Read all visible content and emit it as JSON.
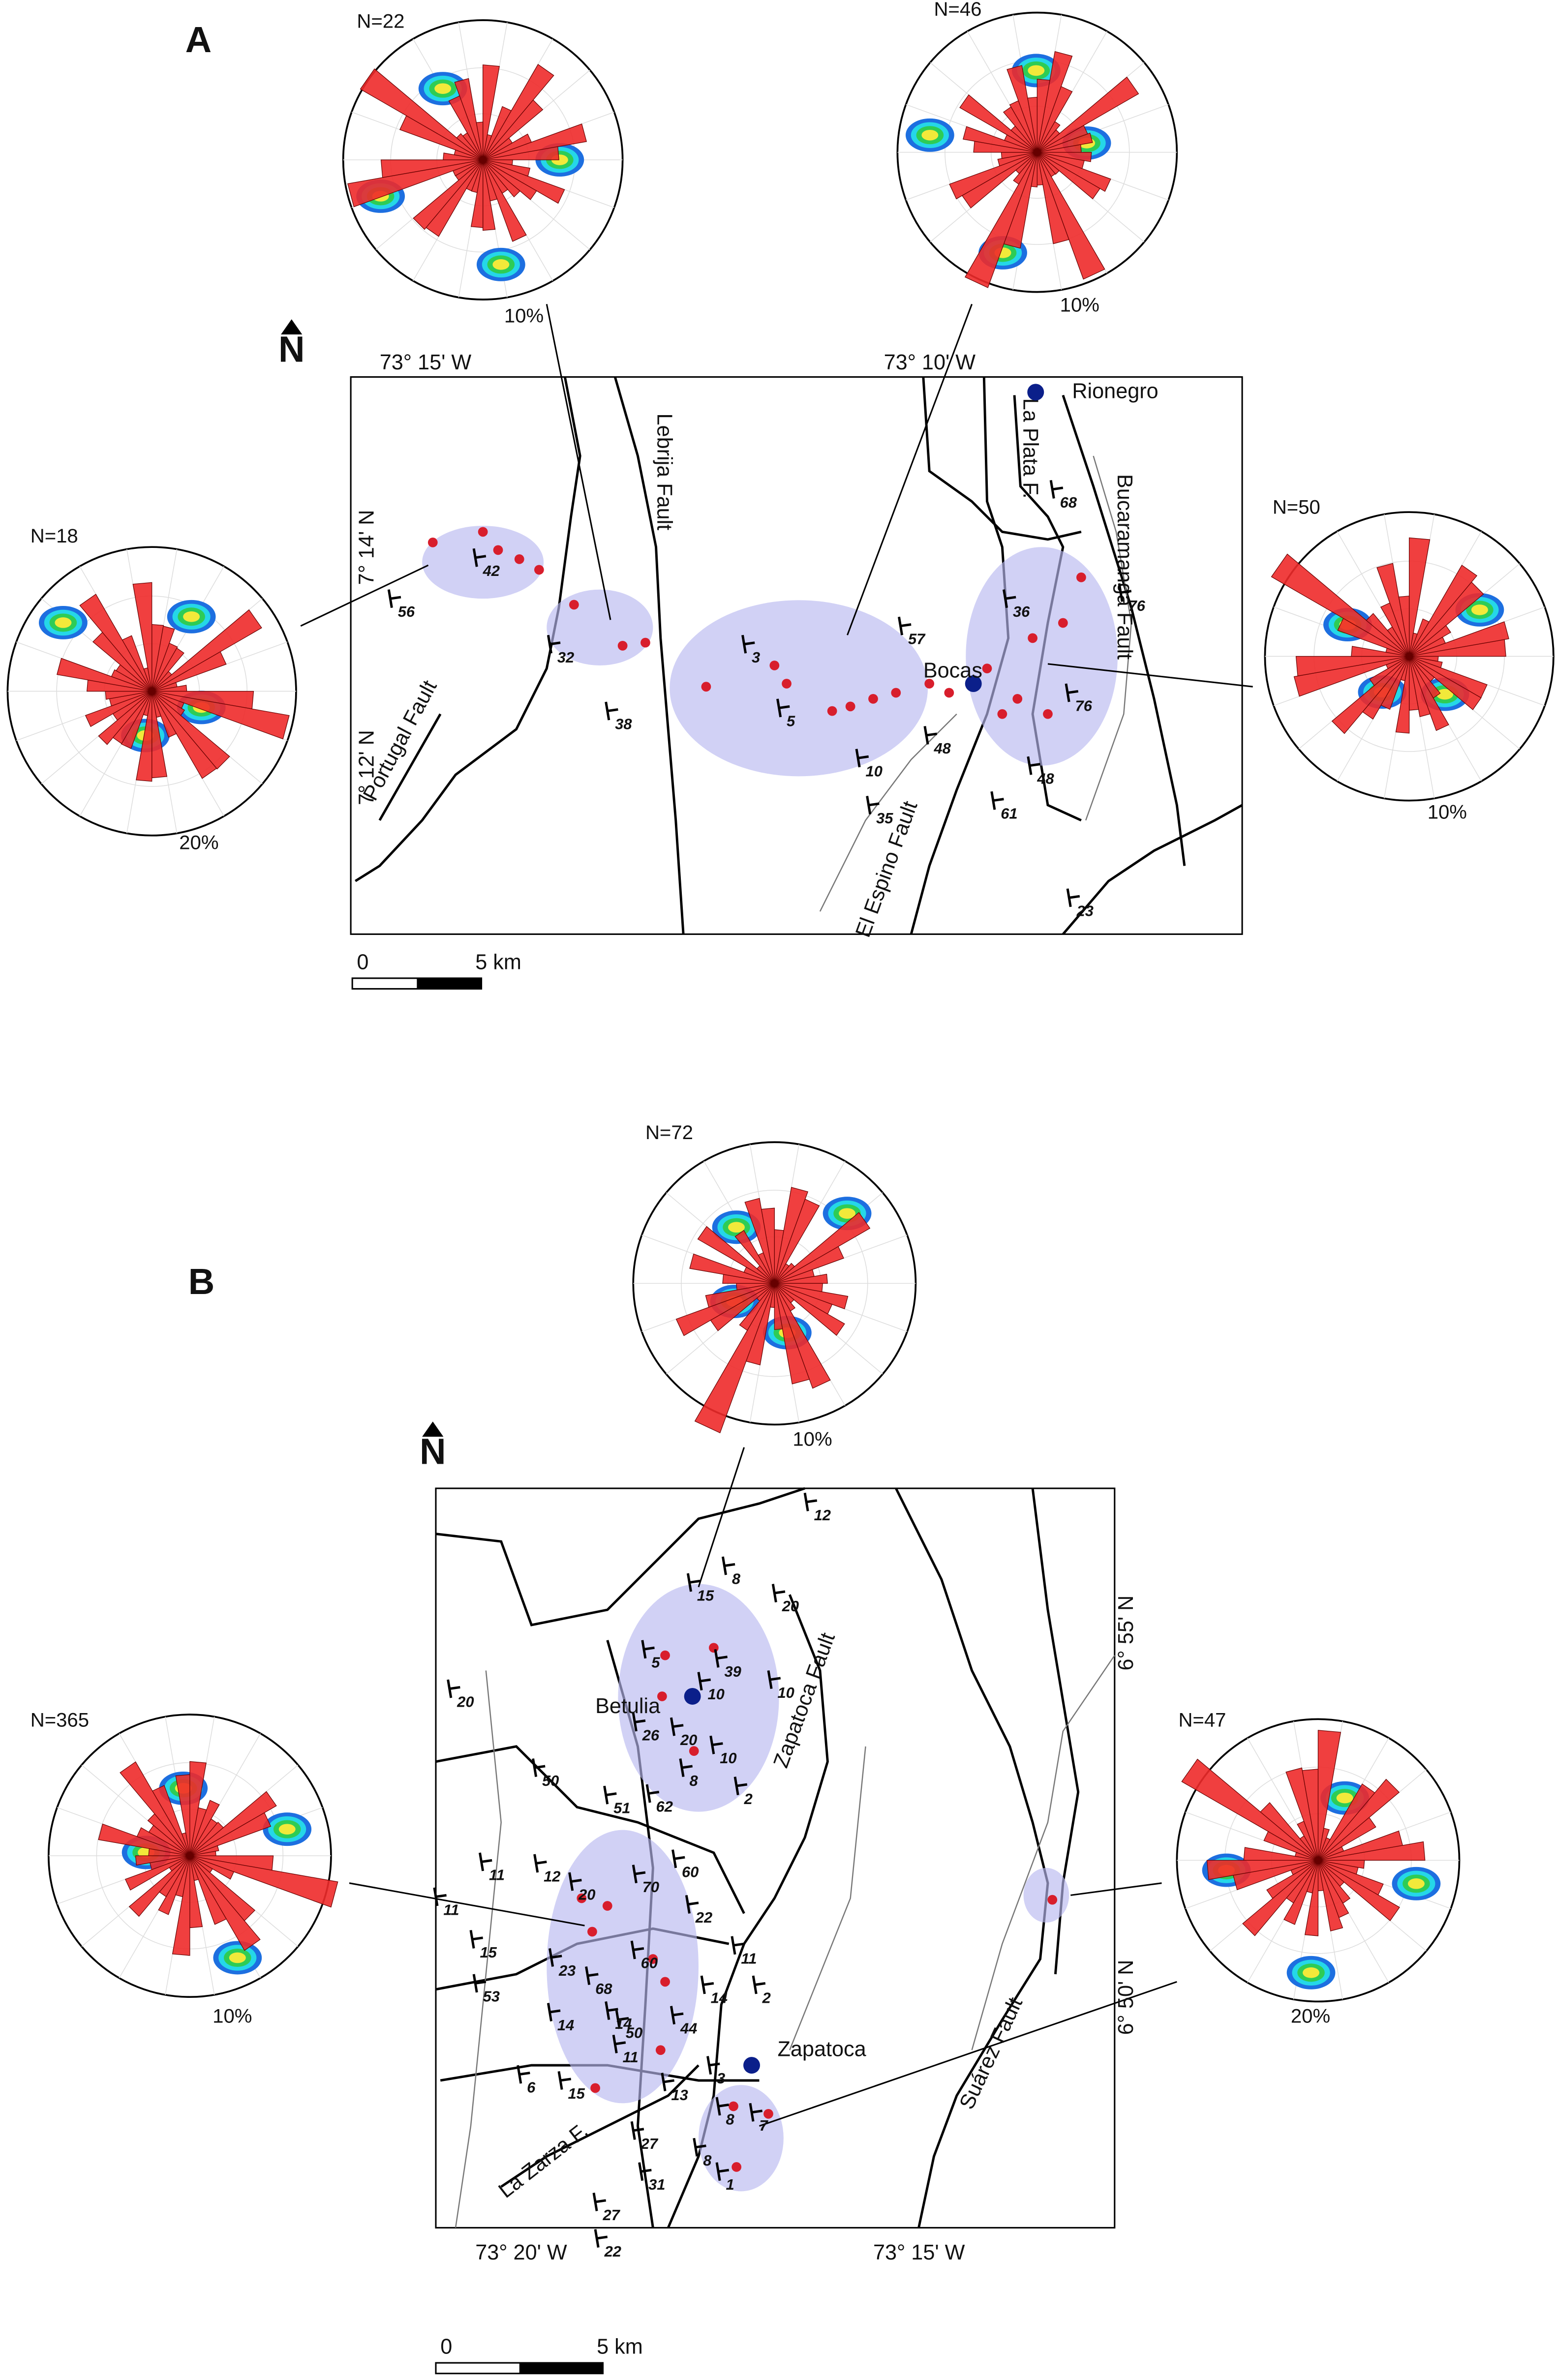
{
  "panels": [
    {
      "label": "A",
      "north": "N",
      "stereonets": [
        {
          "n": "N=22",
          "scale": "10%"
        },
        {
          "n": "N=46",
          "scale": "10%"
        },
        {
          "n": "N=18",
          "scale": "20%"
        },
        {
          "n": "N=50",
          "scale": "10%"
        }
      ],
      "coords": [
        "73° 15' W",
        "73° 10' W",
        "7° 14' N",
        "7° 12' N"
      ],
      "faults": [
        "Lebrija Fault",
        "Portugal Fault",
        "La Plata F.",
        "Bucaramanga Fault",
        "El Espino Fault"
      ],
      "towns": [
        "Rionegro",
        "Bocas"
      ],
      "dips": [
        "42",
        "56",
        "32",
        "38",
        "3",
        "5",
        "57",
        "36",
        "76",
        "68",
        "10",
        "48",
        "35",
        "76",
        "48",
        "61",
        "23"
      ],
      "scale": {
        "start": "0",
        "end": "5 km"
      }
    },
    {
      "label": "B",
      "north": "N",
      "stereonets": [
        {
          "n": "N=72",
          "scale": "10%"
        },
        {
          "n": "N=365",
          "scale": "10%"
        },
        {
          "n": "N=47",
          "scale": "20%"
        }
      ],
      "coords": [
        "73° 20' W",
        "73° 15' W",
        "6° 55' N",
        "6° 50' N"
      ],
      "faults": [
        "Zapatoca Fault",
        "La Zarza F.",
        "Suárez Fault"
      ],
      "towns": [
        "Betulia",
        "Zapatoca"
      ],
      "dips": [
        "12",
        "15",
        "8",
        "20",
        "5",
        "39",
        "10",
        "10",
        "26",
        "20",
        "10",
        "8",
        "62",
        "2",
        "51",
        "60",
        "50",
        "20",
        "11",
        "12",
        "20",
        "70",
        "22",
        "11",
        "15",
        "23",
        "60",
        "68",
        "50",
        "14",
        "53",
        "14",
        "14",
        "11",
        "44",
        "2",
        "15",
        "13",
        "6",
        "3",
        "8",
        "7",
        "8",
        "1",
        "27",
        "31",
        "27",
        "22",
        "11"
      ],
      "scale": {
        "start": "0",
        "end": "5 km"
      }
    }
  ]
}
